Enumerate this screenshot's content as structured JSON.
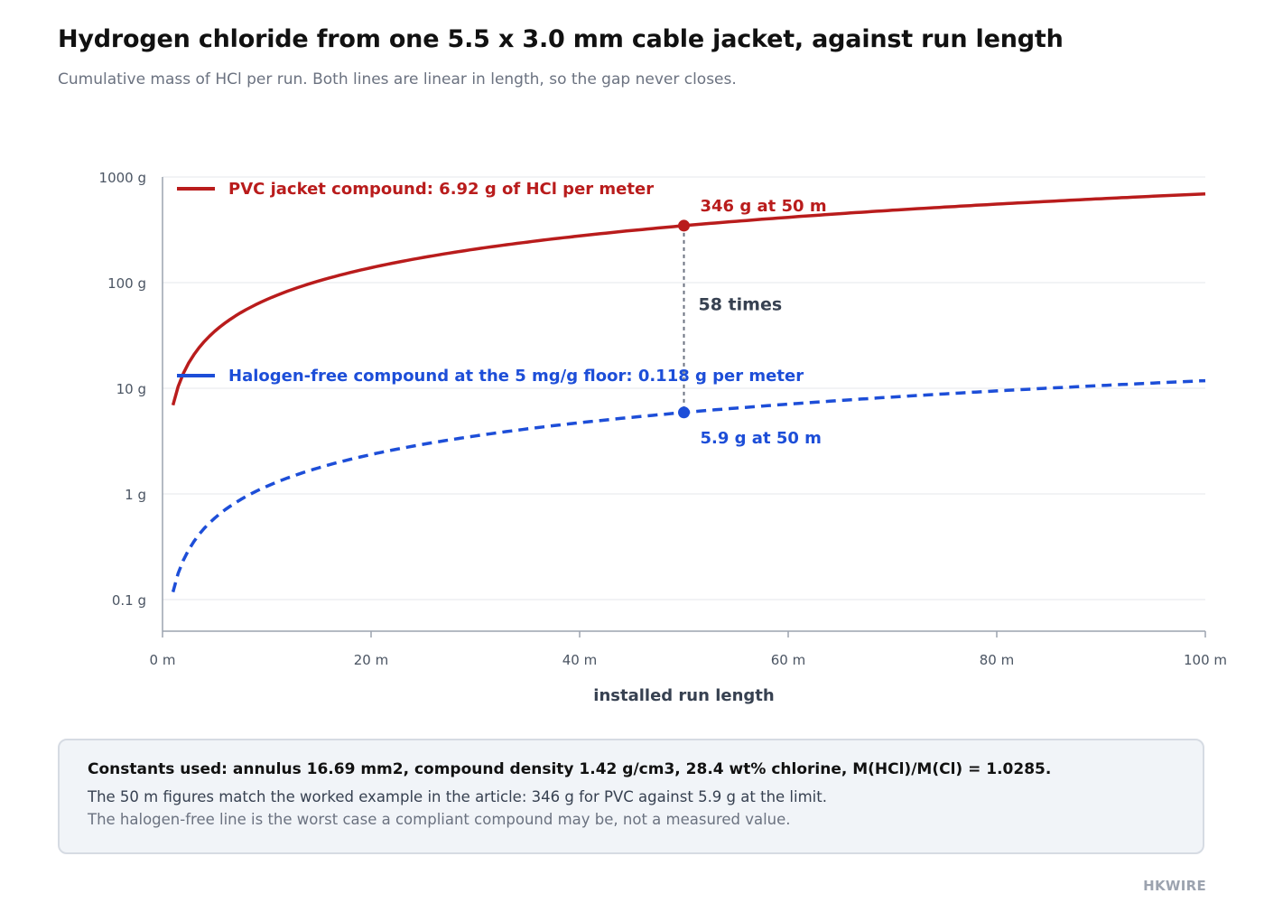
{
  "header": {
    "title": "Hydrogen chloride from one 5.5 x 3.0 mm cable jacket, against run length",
    "subtitle": "Cumulative mass of HCl per run. Both lines are linear in length, so the gap never closes."
  },
  "chart_data": {
    "type": "line",
    "xlabel": "installed run length",
    "xlim": [
      0,
      100
    ],
    "ylim": [
      0.05,
      1000
    ],
    "yscale": "log",
    "grid": true,
    "x_ticks": [
      {
        "value": 0,
        "label": "0 m"
      },
      {
        "value": 20,
        "label": "20 m"
      },
      {
        "value": 40,
        "label": "40 m"
      },
      {
        "value": 60,
        "label": "60 m"
      },
      {
        "value": 80,
        "label": "80 m"
      },
      {
        "value": 100,
        "label": "100 m"
      }
    ],
    "y_ticks": [
      {
        "value": 0.1,
        "label": "0.1 g"
      },
      {
        "value": 1,
        "label": "1 g"
      },
      {
        "value": 10,
        "label": "10 g"
      },
      {
        "value": 100,
        "label": "100 g"
      },
      {
        "value": 1000,
        "label": "1000 g"
      }
    ],
    "x": [
      1,
      2,
      3,
      4,
      5,
      6,
      8,
      10,
      15,
      20,
      30,
      40,
      50,
      60,
      70,
      80,
      90,
      100
    ],
    "series": [
      {
        "name": "PVC jacket compound: 6.92 g of HCl per meter",
        "color": "#b91c1c",
        "style": "solid",
        "values": [
          6.92,
          13.84,
          20.76,
          27.68,
          34.6,
          41.52,
          55.36,
          69.2,
          103.8,
          138.4,
          207.6,
          276.8,
          346,
          415.2,
          484.4,
          553.6,
          622.8,
          692
        ]
      },
      {
        "name": "Halogen-free compound at the 5 mg/g floor: 0.118 g per meter",
        "color": "#1d4ed8",
        "style": "dashed",
        "values": [
          0.118,
          0.236,
          0.354,
          0.472,
          0.59,
          0.708,
          0.944,
          1.18,
          1.77,
          2.36,
          3.54,
          4.72,
          5.9,
          7.08,
          8.26,
          9.44,
          10.62,
          11.8
        ]
      }
    ],
    "legend_placement": "inside, top-left",
    "annotations": [
      {
        "x": 50,
        "y": 346,
        "label": "346 g at 50 m",
        "color": "#b91c1c"
      },
      {
        "x": 50,
        "y": 5.9,
        "label": "5.9 g at 50 m",
        "color": "#1d4ed8"
      },
      {
        "label": "58 times",
        "x": 50
      }
    ]
  },
  "notes": {
    "lead": "Constants used: annulus 16.69 mm2, compound density 1.42 g/cm3, 28.4 wt% chlorine, M(HCl)/M(Cl) = 1.0285.",
    "line1": "The 50 m figures match the worked example in the article: 346 g for PVC against 5.9 g at the limit.",
    "line2": "The halogen-free line is the worst case a compliant compound may be, not a measured value."
  },
  "brand": "HKWIRE"
}
